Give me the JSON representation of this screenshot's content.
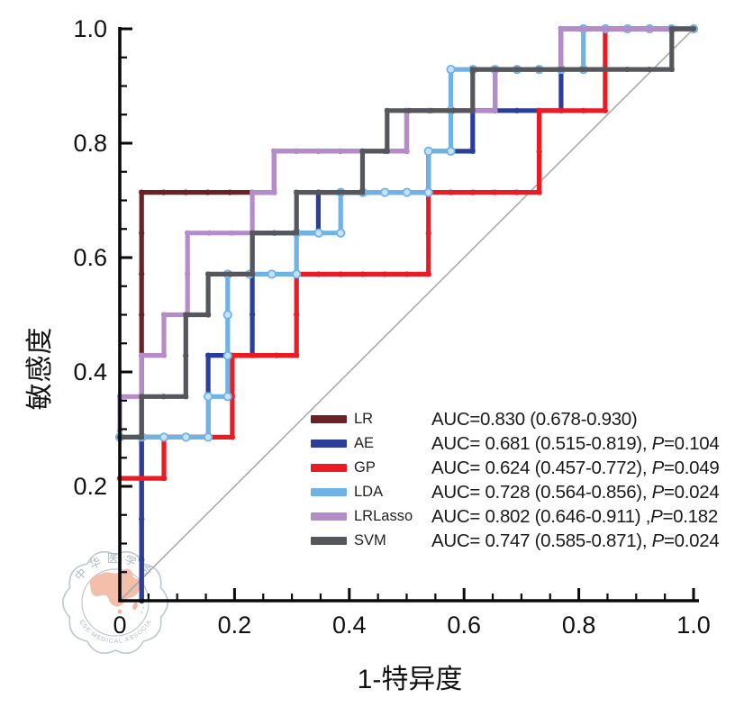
{
  "figure": {
    "kind": "ROC curve comparison plot"
  },
  "axes": {
    "x_label": "1-特异度",
    "y_label": "敏感度",
    "x_tick_labels": [
      "0",
      "0.2",
      "0.4",
      "0.6",
      "0.8",
      "1.0"
    ],
    "y_tick_labels": [
      "0.2",
      "0.4",
      "0.6",
      "0.8",
      "1.0"
    ],
    "major_tick_step": 0.2,
    "minor_tick_step": 0.05,
    "axis_color": "#0a0a0a"
  },
  "legend": {
    "items": [
      {
        "model": "LR",
        "color": "#6b2126",
        "auc": "AUC=0.830 (0.678-0.930)",
        "p_label": "",
        "p_value": ""
      },
      {
        "model": "AE",
        "color": "#2b3e9b",
        "auc": "AUC= 0.681 (0.515-0.819), ",
        "p_label": "P",
        "p_value": "=0.104"
      },
      {
        "model": "GP",
        "color": "#ec1b23",
        "auc": "AUC= 0.624 (0.457-0.772), ",
        "p_label": "P",
        "p_value": "=0.049"
      },
      {
        "model": "LDA",
        "color": "#6fb3e5",
        "auc": "AUC= 0.728 (0.564-0.856), ",
        "p_label": "P",
        "p_value": "=0.024"
      },
      {
        "model": "LRLasso",
        "color": "#b48cc9",
        "auc": "AUC= 0.802 (0.646-0.911) ,",
        "p_label": "P",
        "p_value": "=0.182"
      },
      {
        "model": "SVM",
        "color": "#55575c",
        "auc": "AUC= 0.747 (0.585-0.871), ",
        "p_label": "P",
        "p_value": "=0.024"
      }
    ]
  },
  "watermark": {
    "org_zh": "中华医学会",
    "org_en": "CHINESE MEDICAL ASSOCIATION",
    "outline_color": "#bcc5cd",
    "map_color": "#f1b098"
  },
  "chart_data": {
    "type": "line",
    "subtype": "roc-step",
    "title": "",
    "xlabel": "1-特异度 (1-specificity)",
    "ylabel": "敏感度 (sensitivity)",
    "xlim": [
      0,
      1
    ],
    "ylim": [
      0,
      1
    ],
    "grid": false,
    "legend_position": "lower-right",
    "diagonal_reference": true,
    "diagonal_color": "#ababab",
    "x_marker_step": 0.03846,
    "y_marker_step": 0.07143,
    "series": [
      {
        "name": "LR",
        "color": "#6b2126",
        "marker": "dot",
        "auc": 0.83,
        "ci": "0.678-0.930",
        "p": null,
        "points": [
          [
            0.038,
            0
          ],
          [
            0.038,
            0.714
          ],
          [
            0.269,
            0.714
          ],
          [
            0.269,
            0.786
          ],
          [
            0.5,
            0.786
          ],
          [
            0.5,
            0.857
          ],
          [
            0.654,
            0.857
          ],
          [
            0.654,
            0.929
          ],
          [
            0.769,
            0.929
          ],
          [
            0.769,
            1
          ],
          [
            1,
            1
          ]
        ]
      },
      {
        "name": "AE",
        "color": "#2b3e9b",
        "marker": "dot",
        "auc": 0.681,
        "ci": "0.515-0.819",
        "p": 0.104,
        "points": [
          [
            0.038,
            0
          ],
          [
            0.038,
            0.286
          ],
          [
            0.154,
            0.286
          ],
          [
            0.154,
            0.429
          ],
          [
            0.231,
            0.429
          ],
          [
            0.231,
            0.643
          ],
          [
            0.346,
            0.643
          ],
          [
            0.346,
            0.714
          ],
          [
            0.538,
            0.714
          ],
          [
            0.538,
            0.786
          ],
          [
            0.615,
            0.786
          ],
          [
            0.615,
            0.857
          ],
          [
            0.769,
            0.857
          ],
          [
            0.769,
            1
          ],
          [
            1,
            1
          ]
        ]
      },
      {
        "name": "GP",
        "color": "#ec1b23",
        "marker": "dot",
        "auc": 0.624,
        "ci": "0.457-0.772",
        "p": 0.049,
        "points": [
          [
            0,
            0.214
          ],
          [
            0.077,
            0.214
          ],
          [
            0.077,
            0.286
          ],
          [
            0.196,
            0.286
          ],
          [
            0.196,
            0.429
          ],
          [
            0.308,
            0.429
          ],
          [
            0.308,
            0.571
          ],
          [
            0.538,
            0.571
          ],
          [
            0.538,
            0.714
          ],
          [
            0.731,
            0.714
          ],
          [
            0.731,
            0.857
          ],
          [
            0.846,
            0.857
          ],
          [
            0.846,
            1
          ],
          [
            1,
            1
          ]
        ]
      },
      {
        "name": "LDA",
        "color": "#6fb3e5",
        "marker": "ring",
        "ring_fill": "#c7e2f7",
        "auc": 0.728,
        "ci": "0.564-0.856",
        "p": 0.024,
        "points": [
          [
            0,
            0.286
          ],
          [
            0.154,
            0.286
          ],
          [
            0.154,
            0.357
          ],
          [
            0.188,
            0.357
          ],
          [
            0.188,
            0.571
          ],
          [
            0.308,
            0.571
          ],
          [
            0.308,
            0.643
          ],
          [
            0.385,
            0.643
          ],
          [
            0.385,
            0.714
          ],
          [
            0.538,
            0.714
          ],
          [
            0.538,
            0.786
          ],
          [
            0.577,
            0.786
          ],
          [
            0.577,
            0.929
          ],
          [
            0.808,
            0.929
          ],
          [
            0.808,
            1
          ],
          [
            1,
            1
          ]
        ]
      },
      {
        "name": "LRLasso",
        "color": "#b48cc9",
        "marker": "dot",
        "auc": 0.802,
        "ci": "0.646-0.911",
        "p": 0.182,
        "points": [
          [
            0,
            0.297
          ],
          [
            0,
            0.357
          ],
          [
            0.038,
            0.357
          ],
          [
            0.038,
            0.429
          ],
          [
            0.077,
            0.429
          ],
          [
            0.077,
            0.5
          ],
          [
            0.118,
            0.5
          ],
          [
            0.118,
            0.643
          ],
          [
            0.231,
            0.643
          ],
          [
            0.231,
            0.714
          ],
          [
            0.269,
            0.714
          ],
          [
            0.269,
            0.786
          ],
          [
            0.5,
            0.786
          ],
          [
            0.5,
            0.857
          ],
          [
            0.654,
            0.857
          ],
          [
            0.654,
            0.929
          ],
          [
            0.769,
            0.929
          ],
          [
            0.769,
            1
          ],
          [
            1,
            1
          ]
        ]
      },
      {
        "name": "SVM",
        "color": "#55575c",
        "marker": "dot",
        "auc": 0.747,
        "ci": "0.585-0.871",
        "p": 0.024,
        "points": [
          [
            0,
            0.286
          ],
          [
            0.038,
            0.286
          ],
          [
            0.038,
            0.357
          ],
          [
            0.115,
            0.357
          ],
          [
            0.115,
            0.5
          ],
          [
            0.154,
            0.5
          ],
          [
            0.154,
            0.571
          ],
          [
            0.231,
            0.571
          ],
          [
            0.231,
            0.643
          ],
          [
            0.308,
            0.643
          ],
          [
            0.308,
            0.714
          ],
          [
            0.423,
            0.714
          ],
          [
            0.423,
            0.786
          ],
          [
            0.466,
            0.786
          ],
          [
            0.466,
            0.857
          ],
          [
            0.615,
            0.857
          ],
          [
            0.615,
            0.929
          ],
          [
            0.962,
            0.929
          ],
          [
            0.962,
            1
          ],
          [
            1,
            1
          ]
        ]
      }
    ]
  }
}
